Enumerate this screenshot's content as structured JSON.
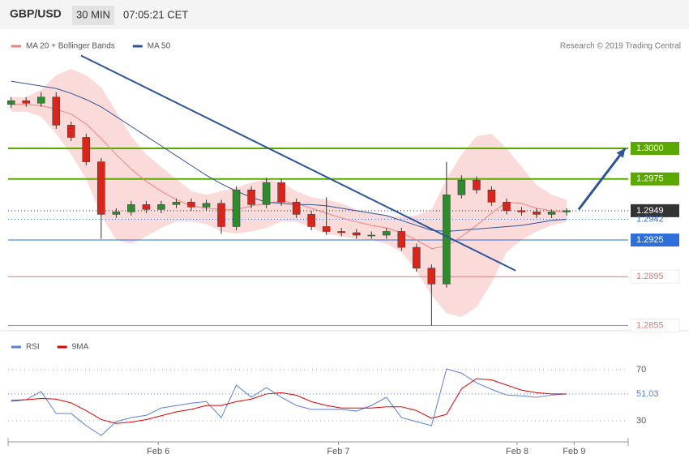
{
  "header": {
    "symbol": "GBP/USD",
    "interval": "30 MIN",
    "time": "07:05:21 CET"
  },
  "chart_data": [
    {
      "type": "candlestick",
      "source": "Research © 2019 Trading Central",
      "x": [
        0,
        1,
        2,
        3,
        4,
        5,
        6,
        7,
        8,
        9,
        10,
        11,
        12,
        13,
        14,
        15,
        16,
        17,
        18,
        19,
        20,
        21,
        22,
        23,
        24,
        25,
        26,
        27,
        28,
        29,
        30,
        31,
        32,
        33,
        34,
        35,
        36,
        37
      ],
      "open": [
        1.3036,
        1.3039,
        1.3037,
        1.3042,
        1.3019,
        1.3009,
        1.2989,
        1.2946,
        1.2948,
        1.2954,
        1.295,
        1.2954,
        1.2956,
        1.2952,
        1.2955,
        1.2936,
        1.2966,
        1.2954,
        1.2972,
        1.2956,
        1.2946,
        1.2936,
        1.2932,
        1.2931,
        1.2929,
        1.2929,
        1.2932,
        1.2919,
        1.2902,
        1.2889,
        1.2962,
        1.2974,
        1.2966,
        1.2956,
        1.2949,
        1.2948,
        1.2946,
        1.2948
      ],
      "high": [
        1.3042,
        1.3042,
        1.3046,
        1.3046,
        1.3022,
        1.3012,
        1.2992,
        1.2951,
        1.2957,
        1.2957,
        1.2957,
        1.2959,
        1.2959,
        1.2958,
        1.2958,
        1.2969,
        1.2969,
        1.2976,
        1.2975,
        1.2959,
        1.2949,
        1.296,
        1.2935,
        1.2934,
        1.2932,
        1.2935,
        1.2935,
        1.2922,
        1.2905,
        1.2989,
        1.2978,
        1.2977,
        1.2969,
        1.2959,
        1.2952,
        1.2951,
        1.295,
        1.2951
      ],
      "low": [
        1.3033,
        1.3034,
        1.3034,
        1.3016,
        1.3006,
        1.2986,
        1.2926,
        1.2943,
        1.2945,
        1.2947,
        1.2947,
        1.2951,
        1.2949,
        1.2949,
        1.293,
        1.2933,
        1.2951,
        1.2951,
        1.2953,
        1.2943,
        1.2933,
        1.2929,
        1.2928,
        1.2926,
        1.2926,
        1.2926,
        1.2916,
        1.2899,
        1.2855,
        1.2886,
        1.2959,
        1.2963,
        1.2953,
        1.2946,
        1.2945,
        1.2943,
        1.2943,
        1.2945
      ],
      "close": [
        1.3039,
        1.3037,
        1.3042,
        1.3019,
        1.3009,
        1.2989,
        1.2946,
        1.2948,
        1.2954,
        1.295,
        1.2954,
        1.2956,
        1.2952,
        1.2955,
        1.2936,
        1.2966,
        1.2954,
        1.2972,
        1.2956,
        1.2946,
        1.2936,
        1.2932,
        1.2931,
        1.2929,
        1.2929,
        1.2932,
        1.2919,
        1.2902,
        1.2889,
        1.2962,
        1.2974,
        1.2966,
        1.2956,
        1.2949,
        1.2948,
        1.2946,
        1.2948,
        1.2949
      ],
      "up_color": "#2e8b2e",
      "down_color": "#d9261c",
      "series": [
        {
          "name": "MA 20 + Bollinger Bands",
          "color": "#f08080",
          "values": [
            1.3036,
            1.3036,
            1.3035,
            1.3032,
            1.3028,
            1.302,
            1.3008,
            1.2995,
            1.2983,
            1.2973,
            1.2965,
            1.2958,
            1.2953,
            1.2951,
            1.295,
            1.295,
            1.2953,
            1.2955,
            1.2957,
            1.2955,
            1.2951,
            1.2947,
            1.2943,
            1.294,
            1.2937,
            1.2935,
            1.2931,
            1.2925,
            1.2918,
            1.292,
            1.2928,
            1.2937,
            1.2947,
            1.2956,
            1.2955,
            1.2951,
            1.2949,
            1.2948
          ],
          "upper": [
            1.3042,
            1.3042,
            1.3048,
            1.306,
            1.3065,
            1.306,
            1.305,
            1.303,
            1.301,
            1.2995,
            1.2985,
            1.2975,
            1.2965,
            1.2962,
            1.2965,
            1.2968,
            1.2972,
            1.2975,
            1.2972,
            1.2965,
            1.296,
            1.2958,
            1.2955,
            1.295,
            1.2947,
            1.2945,
            1.2944,
            1.2945,
            1.295,
            1.2975,
            1.2995,
            1.301,
            1.3012,
            1.3,
            1.2985,
            1.297,
            1.2962,
            1.2958
          ],
          "lower": [
            1.303,
            1.303,
            1.3026,
            1.3012,
            1.2995,
            1.2975,
            1.2945,
            1.2925,
            1.2922,
            1.2928,
            1.2935,
            1.294,
            1.294,
            1.2938,
            1.2932,
            1.293,
            1.2932,
            1.2935,
            1.294,
            1.294,
            1.2935,
            1.293,
            1.2928,
            1.2926,
            1.2925,
            1.2922,
            1.2915,
            1.29,
            1.288,
            1.2865,
            1.2862,
            1.287,
            1.289,
            1.2915,
            1.2925,
            1.2932,
            1.2937,
            1.294
          ],
          "band_color": "#fbdada"
        },
        {
          "name": "MA 50",
          "color": "#2e5597",
          "values": [
            1.3055,
            1.3053,
            1.3051,
            1.3049,
            1.3045,
            1.304,
            1.3034,
            1.3026,
            1.3018,
            1.301,
            1.3002,
            1.2994,
            1.2986,
            1.2978,
            1.2971,
            1.2965,
            1.296,
            1.2956,
            1.2955,
            1.2954,
            1.2954,
            1.2953,
            1.2951,
            1.2949,
            1.2947,
            1.2945,
            1.2941,
            1.2937,
            1.2933,
            1.2932,
            1.2933,
            1.2934,
            1.2935,
            1.2936,
            1.2937,
            1.2939,
            1.2941,
            1.2942
          ]
        }
      ],
      "levels": [
        {
          "value": 1.3,
          "label": "1.3000",
          "color": "#5aa800",
          "style": "filled",
          "line": "solid"
        },
        {
          "value": 1.2975,
          "color": "#5aa800",
          "style": "filled",
          "line": "solid"
        },
        {
          "value": 1.2949,
          "color": "#333333",
          "style": "filled",
          "line": "dotted"
        },
        {
          "value": 1.2942,
          "color": "#2e6fd9",
          "style": "plain",
          "line": "dotted"
        },
        {
          "value": 1.2925,
          "color": "#2e6fd9",
          "style": "filled",
          "line": "solid"
        },
        {
          "value": 1.2895,
          "color": "#e8766e",
          "style": "outline",
          "line": "solid"
        },
        {
          "value": 1.2855,
          "color": "#e8766e",
          "style": "outline",
          "line": "solid"
        }
      ],
      "trendlines": [
        {
          "x": [
            4.65,
            33.6
          ],
          "y": [
            1.3076,
            1.29
          ],
          "color": "#2e5597",
          "arrow": false
        },
        {
          "x": [
            37.8,
            40.9
          ],
          "y": [
            1.295,
            1.3
          ],
          "color": "#2e5597",
          "arrow": true
        }
      ],
      "xlim": [
        -0.2,
        41.1
      ],
      "ylim": [
        1.28527,
        1.30949
      ]
    },
    {
      "type": "line",
      "x": [
        0,
        1,
        2,
        3,
        4,
        5,
        6,
        7,
        8,
        9,
        10,
        11,
        12,
        13,
        14,
        15,
        16,
        17,
        18,
        19,
        20,
        21,
        22,
        23,
        24,
        25,
        26,
        27,
        28,
        29,
        30,
        31,
        32,
        33,
        34,
        35,
        36,
        37
      ],
      "series": [
        {
          "name": "RSI",
          "color": "#5b7fde",
          "values": [
            45.2,
            46.5,
            52.9,
            35.7,
            35.7,
            26.2,
            18.5,
            29.4,
            32.5,
            34.3,
            40.0,
            41.9,
            43.8,
            45.1,
            32.5,
            57.9,
            48.4,
            56.0,
            48.4,
            42.0,
            38.9,
            38.9,
            38.9,
            37.6,
            42.0,
            48.4,
            32.5,
            29.4,
            26.2,
            70.6,
            67.3,
            59.7,
            54.6,
            50.2,
            49.5,
            48.4,
            50.2,
            51.03
          ]
        },
        {
          "name": "9MA",
          "color": "#e00000",
          "values": [
            46,
            46.5,
            47.5,
            47,
            44,
            38,
            31,
            28,
            29,
            31,
            34,
            37,
            39,
            42,
            42,
            45,
            47,
            51,
            52,
            50,
            45,
            42,
            40,
            40,
            40,
            41,
            41,
            38,
            32,
            35,
            55,
            63,
            62,
            58,
            54,
            52,
            51,
            51
          ]
        }
      ],
      "xlim": [
        -0.2,
        41.1
      ],
      "ylim": [
        16.7,
        97.9
      ],
      "yticks": [
        30,
        70
      ],
      "xticks": [
        {
          "value": 9.8,
          "label": "Feb 6"
        },
        {
          "value": 21.8,
          "label": "Feb 7"
        },
        {
          "value": 33.7,
          "label": "Feb 8"
        },
        {
          "value": 37.5,
          "label": "Feb 9"
        }
      ]
    }
  ]
}
